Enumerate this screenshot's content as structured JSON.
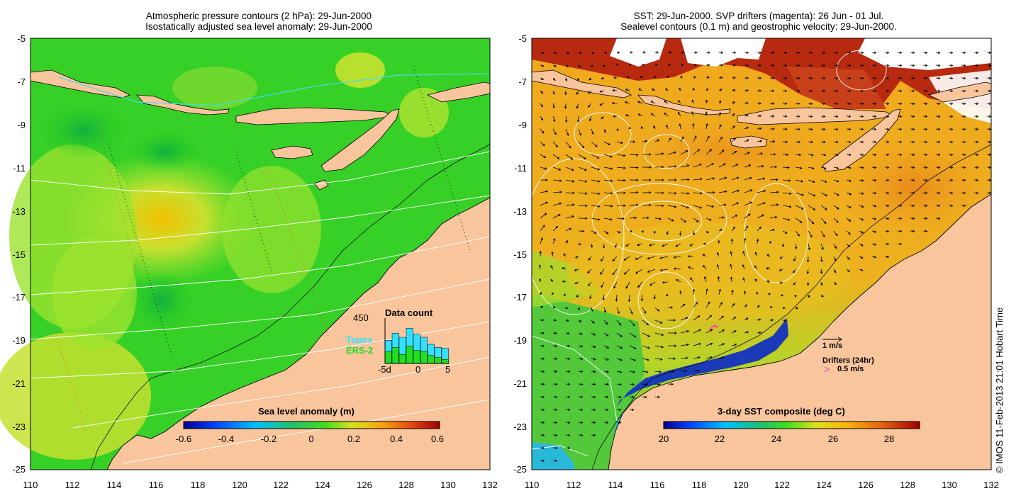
{
  "left_panel": {
    "title_line1": "Atmospheric pressure contours (2 hPa): 29-Jun-2000",
    "title_line2": "Isostatically adjusted sea level anomaly: 29-Jun-2000",
    "y_ticks": [
      "-5",
      "-7",
      "-9",
      "-11",
      "-13",
      "-15",
      "-17",
      "-19",
      "-21",
      "-23",
      "-25"
    ],
    "x_ticks": [
      "110",
      "112",
      "114",
      "116",
      "118",
      "120",
      "122",
      "124",
      "126",
      "128",
      "130",
      "132"
    ],
    "inset": {
      "title": "Data count",
      "max_label": "450",
      "series": [
        {
          "name": "Topex",
          "color": "#33e0ff"
        },
        {
          "name": "ERS-2",
          "color": "#22dd22"
        }
      ],
      "x_labels": [
        "-5d",
        "0",
        "5"
      ],
      "topex_counts": [
        230,
        300,
        260,
        350,
        290,
        260,
        190,
        160,
        150
      ],
      "ers_counts": [
        120,
        160,
        90,
        170,
        130,
        120,
        80,
        60,
        40
      ]
    },
    "colorbar": {
      "label": "Sea level anomaly (m)",
      "ticks": [
        "-0.6",
        "-0.4",
        "-0.2",
        "0",
        "0.2",
        "0.4",
        "0.6"
      ]
    }
  },
  "right_panel": {
    "title_line1": "SST: 29-Jun-2000. SVP drifters (magenta): 26 Jun - 01 Jul.",
    "title_line2": "Sealevel contours (0.1 m) and geostrophic velocity: 29-Jun-2000.",
    "y_ticks": [
      "-5",
      "-7",
      "-9",
      "-11",
      "-13",
      "-15",
      "-17",
      "-19",
      "-21",
      "-23",
      "-25"
    ],
    "x_ticks": [
      "110",
      "112",
      "114",
      "116",
      "118",
      "120",
      "122",
      "124",
      "126",
      "128",
      "130",
      "132"
    ],
    "velocity_scale": "1 m/s",
    "drifter_label": "Drifters (24hr)",
    "drifter_symbol": ">",
    "drifter_scale": "0.5 m/s",
    "colorbar": {
      "label": "3-day SST composite (deg C)",
      "ticks": [
        "20",
        "22",
        "24",
        "26",
        "28"
      ]
    }
  },
  "credit": "© IMOS 11-Feb-2013 21:01 Hobart Time",
  "colors": {
    "land": "#f9c59c",
    "ocean_green": "#22cc22",
    "sst_orange": "#f0a020",
    "drifter": "#ff33cc"
  }
}
